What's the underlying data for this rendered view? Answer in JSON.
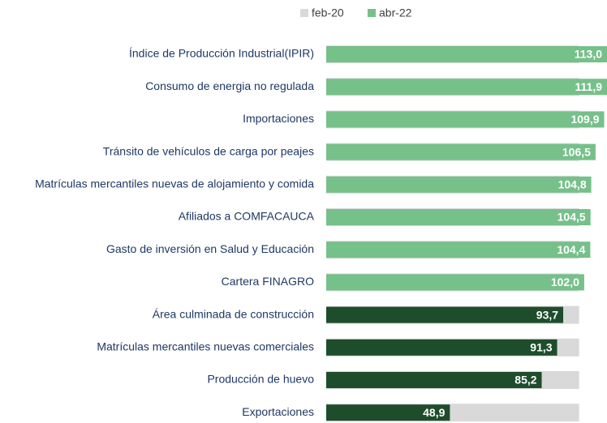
{
  "chart_data": {
    "type": "bar",
    "orientation": "horizontal",
    "categories": [
      "Índice de Producción Industrial(IPIR)",
      "Consumo de energia no regulada",
      "Importaciones",
      "Tránsito de vehículos de carga por peajes",
      "Matrículas mercantiles nuevas de alojamiento y comida",
      "Afiliados a COMFACAUCA",
      "Gasto de inversión en Salud y Educación",
      "Cartera FINAGRO",
      "Área culminada de construcción",
      "Matrículas mercantiles nuevas comerciales",
      "Producción de huevo",
      "Exportaciones"
    ],
    "series": [
      {
        "name": "feb-20",
        "color": "#d9d9d9",
        "values": [
          100,
          100,
          100,
          100,
          100,
          100,
          100,
          100,
          100,
          100,
          100,
          100
        ]
      },
      {
        "name": "abr-22",
        "color": "#76c08a",
        "colors": [
          "#76c08a",
          "#76c08a",
          "#76c08a",
          "#76c08a",
          "#76c08a",
          "#76c08a",
          "#76c08a",
          "#76c08a",
          "#1e4d2b",
          "#1e4d2b",
          "#1e4d2b",
          "#1e4d2b"
        ],
        "values": [
          113.0,
          111.9,
          109.9,
          106.5,
          104.8,
          104.5,
          104.4,
          102.0,
          93.7,
          91.3,
          85.2,
          48.9
        ],
        "value_labels": [
          "113,0",
          "111,9",
          "109,9",
          "106,5",
          "104,8",
          "104,5",
          "104,4",
          "102,0",
          "93,7",
          "91,3",
          "85,2",
          "48,9"
        ]
      }
    ],
    "xlim": [
      0,
      120
    ],
    "legend": "top"
  }
}
